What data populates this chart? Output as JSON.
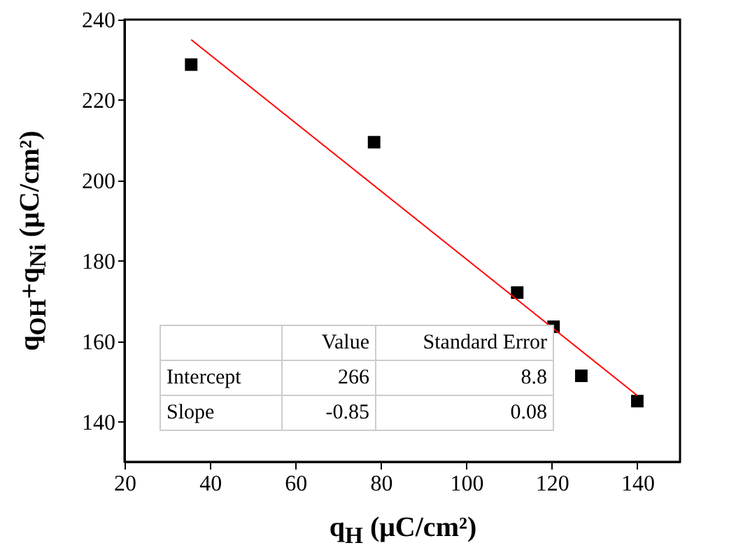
{
  "chart_data": {
    "type": "scatter",
    "xlabel": "q$_{H}$ (μC/cm²)",
    "ylabel": "q$_{OH}$+q$_{Ni}$ (μC/cm²)",
    "x": [
      35.6,
      78.4,
      111.9,
      120.4,
      126.9,
      140
    ],
    "series": [
      {
        "marker": "square",
        "color": "#000000",
        "values": [
          228.8,
          209.5,
          172.1,
          163.6,
          151.4,
          145.1
        ]
      },
      {
        "type": "line",
        "color": "#ff0000",
        "x": [
          35.6,
          140
        ],
        "values": [
          235,
          146.5
        ]
      }
    ],
    "grid": false,
    "xlim": [
      20,
      150
    ],
    "xticks": [
      20,
      40,
      60,
      80,
      100,
      120,
      140
    ],
    "ylim": [
      130,
      240
    ],
    "yticks": [
      140,
      160,
      180,
      200,
      220,
      240
    ],
    "annotations": [
      "Value",
      "Standard Error",
      "Intercept",
      "266",
      "8.8",
      "Slope",
      "-0.85",
      "0.08"
    ]
  }
}
